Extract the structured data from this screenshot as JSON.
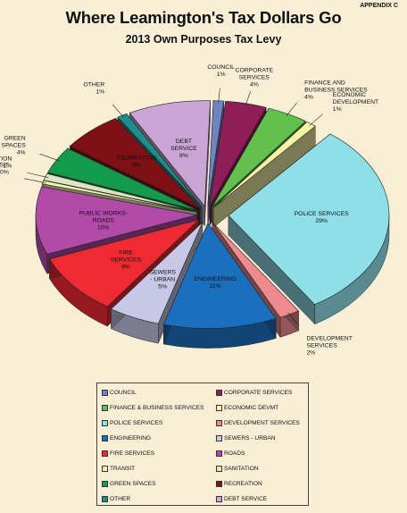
{
  "header": {
    "appendix": "APPENDIX C",
    "title": "Where Leamington's Tax Dollars Go",
    "subtitle": "2013 Own Purposes Tax Levy"
  },
  "chart_data": {
    "type": "pie",
    "title": "Where Leamington's Tax Dollars Go",
    "subtitle": "2013 Own Purposes Tax Levy",
    "style": "3d-exploded",
    "legend_placement": "bottom",
    "slices": [
      {
        "label": "COUNCIL",
        "display": [
          "COUNCIL"
        ],
        "pct_label": "1%",
        "value": 1,
        "color": "#6f83c3"
      },
      {
        "label": "CORPORATE SERVICES",
        "display": [
          "CORPORATE",
          "SERVICES"
        ],
        "pct_label": "4%",
        "value": 4,
        "color": "#8e1d58"
      },
      {
        "label": "FINANCE & BUSINESS SERVICES",
        "display": [
          "FINANCE AND",
          "BUSINESS SERVICES"
        ],
        "pct_label": "4%",
        "value": 4,
        "color": "#62c14d"
      },
      {
        "label": "ECONOMIC DEVMT",
        "display": [
          "ECONOMIC",
          "DEVELOPMENT"
        ],
        "pct_label": "1%",
        "value": 1,
        "color": "#f6f2a6"
      },
      {
        "label": "POLICE SERVICES",
        "display": [
          "POLICE SERVICES"
        ],
        "pct_label": "29%",
        "value": 29,
        "color": "#8fdfe8"
      },
      {
        "label": "DEVELOPMENT SERVICES",
        "display": [
          "DEVELOPMENT",
          "SERVICES"
        ],
        "pct_label": "2%",
        "value": 2,
        "color": "#ef8a8e"
      },
      {
        "label": "ENGINEERING",
        "display": [
          "ENGINEERING"
        ],
        "pct_label": "11%",
        "value": 11,
        "color": "#1b6fbd"
      },
      {
        "label": "SEWERS - URBAN",
        "display": [
          "SEWERS",
          "- URBAN"
        ],
        "pct_label": "5%",
        "value": 5,
        "color": "#c6c8e6"
      },
      {
        "label": "FIRE SERVICES",
        "display": [
          "FIRE",
          "SERVICES"
        ],
        "pct_label": "9%",
        "value": 9,
        "color": "#ee2a33"
      },
      {
        "label": "ROADS",
        "display": [
          "PUBLIC WORKS-",
          "ROADS"
        ],
        "pct_label": "10%",
        "value": 10,
        "color": "#b14aa8"
      },
      {
        "label": "TRANSIT",
        "display": [
          "TRANSIT"
        ],
        "pct_label": "0%",
        "value": 0.5,
        "color": "#f5f1b4"
      },
      {
        "label": "SANITATION",
        "display": [
          "SANITATION"
        ],
        "pct_label": "1%",
        "value": 1,
        "color": "#dde6c4"
      },
      {
        "label": "GREEN SPACES",
        "display": [
          "GREEN",
          "SPACES"
        ],
        "pct_label": "4%",
        "value": 4,
        "color": "#139a4a"
      },
      {
        "label": "RECREATION",
        "display": [
          "RECREATION"
        ],
        "pct_label": "6%",
        "value": 6,
        "color": "#7e1016"
      },
      {
        "label": "OTHER",
        "display": [
          "OTHER"
        ],
        "pct_label": "1%",
        "value": 1,
        "color": "#1e8d8c"
      },
      {
        "label": "DEBT SERVICE",
        "display": [
          "DEBT",
          "SERVICE"
        ],
        "pct_label": "8%",
        "value": 8,
        "color": "#c9a6d6"
      }
    ],
    "legend": [
      "COUNCIL",
      "CORPORATE SERVICES",
      "FINANCE & BUSINESS SERVICES",
      "ECONOMIC DEVMT",
      "POLICE SERVICES",
      "DEVELOPMENT SERVICES",
      "ENGINEERING",
      "SEWERS - URBAN",
      "FIRE SERVICES",
      "ROADS",
      "TRANSIT",
      "SANITATION",
      "GREEN SPACES",
      "RECREATION",
      "OTHER",
      "DEBT SERVICE"
    ]
  }
}
